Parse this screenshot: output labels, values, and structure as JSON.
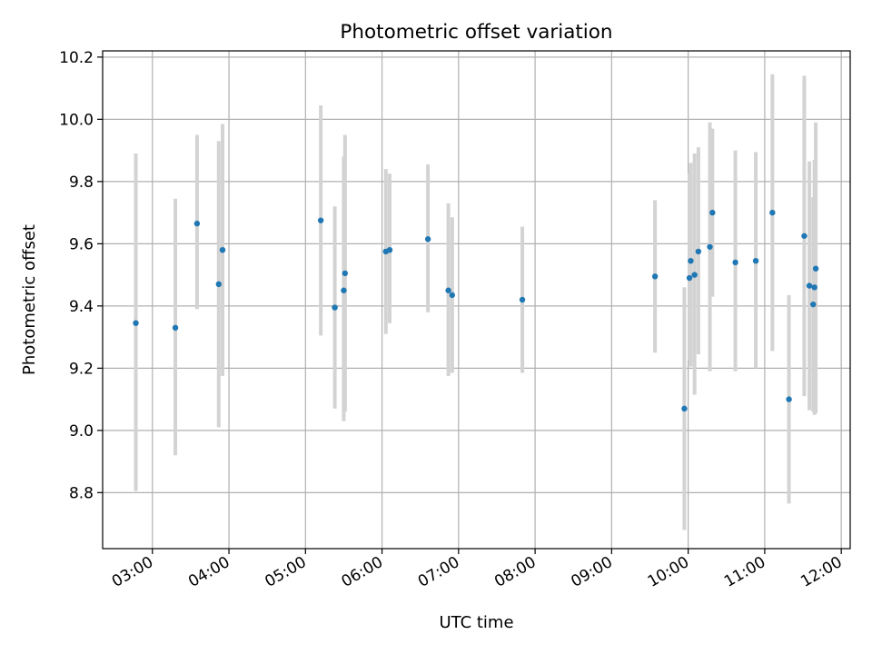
{
  "chart_data": {
    "type": "scatter",
    "title": "Photometric offset variation",
    "xlabel": "UTC time",
    "ylabel": "Photometric offset",
    "x_unit": "UTC time (HH:MM)",
    "xlim": [
      "02:21",
      "12:07"
    ],
    "ylim": [
      8.62,
      10.22
    ],
    "x_ticks": [
      "03:00",
      "04:00",
      "05:00",
      "06:00",
      "07:00",
      "08:00",
      "09:00",
      "10:00",
      "11:00",
      "12:00"
    ],
    "y_ticks": [
      8.8,
      9.0,
      9.2,
      9.4,
      9.6,
      9.8,
      10.0,
      10.2
    ],
    "y_tick_labels": [
      "8.8",
      "9.0",
      "9.2",
      "9.4",
      "9.6",
      "9.8",
      "10.0",
      "10.2"
    ],
    "grid": true,
    "marker_color": "#1f77b4",
    "errorbar_color": "#d3d3d3",
    "points": [
      {
        "x": "02:47",
        "y": 9.345,
        "err_low": 8.805,
        "err_high": 9.89
      },
      {
        "x": "03:18",
        "y": 9.33,
        "err_low": 8.92,
        "err_high": 9.745
      },
      {
        "x": "03:35",
        "y": 9.665,
        "err_low": 9.39,
        "err_high": 9.95
      },
      {
        "x": "03:52",
        "y": 9.47,
        "err_low": 9.01,
        "err_high": 9.93
      },
      {
        "x": "03:55",
        "y": 9.58,
        "err_low": 9.175,
        "err_high": 9.985
      },
      {
        "x": "05:12",
        "y": 9.675,
        "err_low": 9.305,
        "err_high": 10.045
      },
      {
        "x": "05:23",
        "y": 9.395,
        "err_low": 9.07,
        "err_high": 9.72
      },
      {
        "x": "05:30",
        "y": 9.45,
        "err_low": 9.03,
        "err_high": 9.88
      },
      {
        "x": "05:31",
        "y": 9.505,
        "err_low": 9.06,
        "err_high": 9.95
      },
      {
        "x": "06:03",
        "y": 9.575,
        "err_low": 9.31,
        "err_high": 9.84
      },
      {
        "x": "06:06",
        "y": 9.58,
        "err_low": 9.345,
        "err_high": 9.825
      },
      {
        "x": "06:36",
        "y": 9.615,
        "err_low": 9.38,
        "err_high": 9.855
      },
      {
        "x": "06:52",
        "y": 9.45,
        "err_low": 9.175,
        "err_high": 9.73
      },
      {
        "x": "06:55",
        "y": 9.435,
        "err_low": 9.185,
        "err_high": 9.685
      },
      {
        "x": "07:50",
        "y": 9.42,
        "err_low": 9.185,
        "err_high": 9.655
      },
      {
        "x": "09:34",
        "y": 9.495,
        "err_low": 9.25,
        "err_high": 9.74
      },
      {
        "x": "09:57",
        "y": 9.07,
        "err_low": 8.68,
        "err_high": 9.46
      },
      {
        "x": "10:01",
        "y": 9.49,
        "err_low": 9.225,
        "err_high": 9.825
      },
      {
        "x": "10:02",
        "y": 9.545,
        "err_low": 9.205,
        "err_high": 9.86
      },
      {
        "x": "10:05",
        "y": 9.5,
        "err_low": 9.115,
        "err_high": 9.89
      },
      {
        "x": "10:08",
        "y": 9.575,
        "err_low": 9.245,
        "err_high": 9.91
      },
      {
        "x": "10:17",
        "y": 9.59,
        "err_low": 9.19,
        "err_high": 9.99
      },
      {
        "x": "10:19",
        "y": 9.7,
        "err_low": 9.43,
        "err_high": 9.97
      },
      {
        "x": "10:37",
        "y": 9.54,
        "err_low": 9.19,
        "err_high": 9.9
      },
      {
        "x": "10:53",
        "y": 9.545,
        "err_low": 9.2,
        "err_high": 9.895
      },
      {
        "x": "11:06",
        "y": 9.7,
        "err_low": 9.255,
        "err_high": 10.145
      },
      {
        "x": "11:19",
        "y": 9.1,
        "err_low": 8.765,
        "err_high": 9.435
      },
      {
        "x": "11:31",
        "y": 9.625,
        "err_low": 9.11,
        "err_high": 10.14
      },
      {
        "x": "11:35",
        "y": 9.465,
        "err_low": 9.065,
        "err_high": 9.865
      },
      {
        "x": "11:38",
        "y": 9.405,
        "err_low": 9.06,
        "err_high": 9.75
      },
      {
        "x": "11:39",
        "y": 9.46,
        "err_low": 9.05,
        "err_high": 9.87
      },
      {
        "x": "11:40",
        "y": 9.52,
        "err_low": 9.055,
        "err_high": 9.99
      }
    ]
  }
}
